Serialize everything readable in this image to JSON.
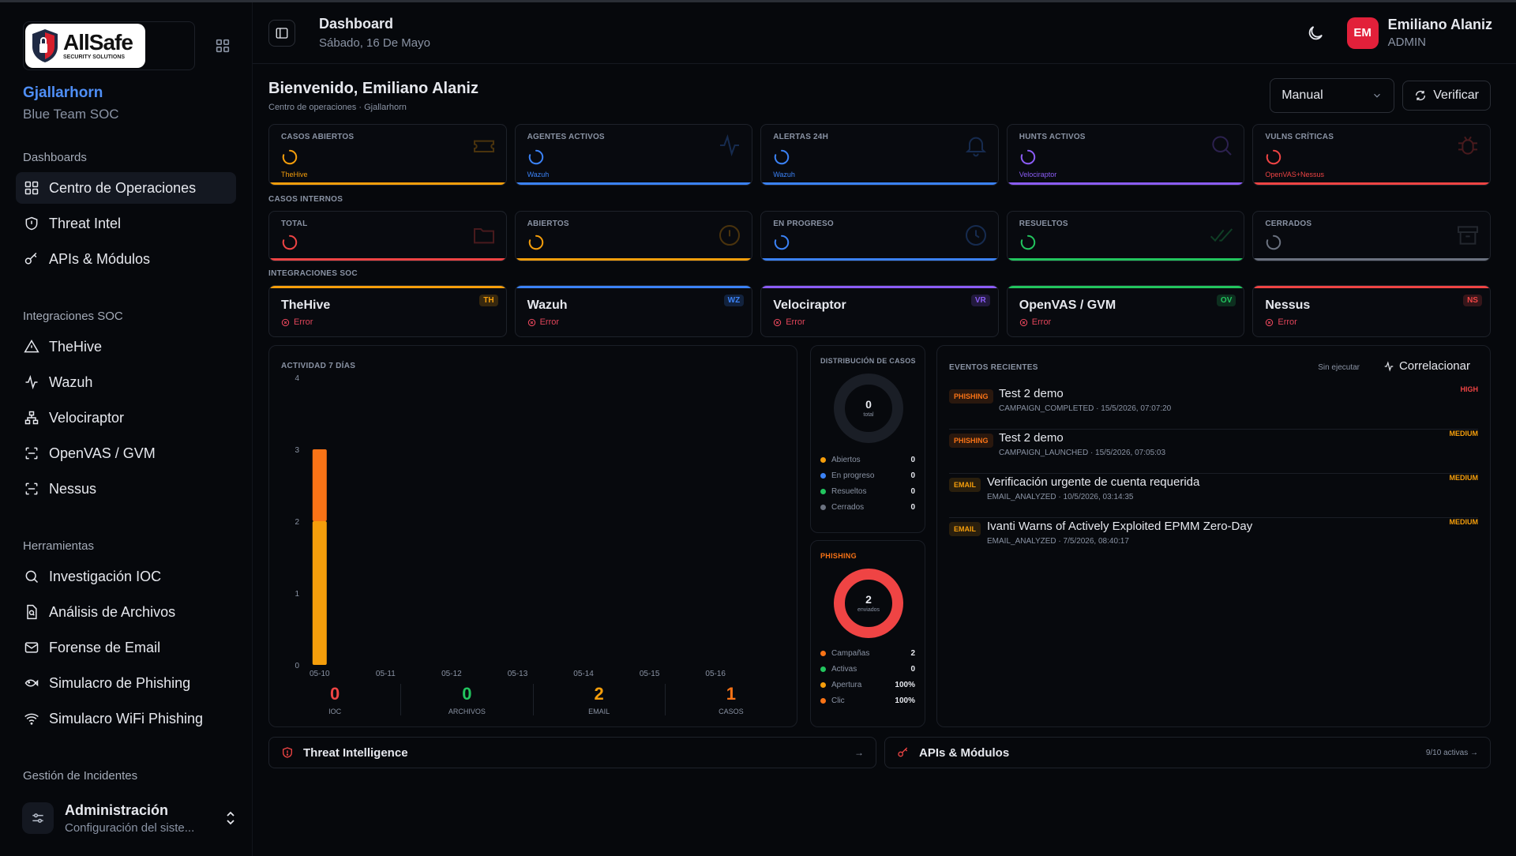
{
  "brand": {
    "logo_main": "AllSafe",
    "logo_sub": "SECURITY SOLUTIONS",
    "org": "Gjallarhorn",
    "team": "Blue Team SOC"
  },
  "sidebar": {
    "sections": [
      {
        "title": "Dashboards",
        "items": [
          {
            "label": "Centro de Operaciones",
            "icon": "layout-icon",
            "active": true
          },
          {
            "label": "Threat Intel",
            "icon": "shield-icon"
          },
          {
            "label": "APIs & Módulos",
            "icon": "key-icon"
          }
        ]
      },
      {
        "title": "Integraciones SOC",
        "items": [
          {
            "label": "TheHive",
            "icon": "triangle-icon"
          },
          {
            "label": "Wazuh",
            "icon": "activity-icon"
          },
          {
            "label": "Velociraptor",
            "icon": "network-icon"
          },
          {
            "label": "OpenVAS / GVM",
            "icon": "scan-icon"
          },
          {
            "label": "Nessus",
            "icon": "scan-icon"
          }
        ]
      },
      {
        "title": "Herramientas",
        "items": [
          {
            "label": "Investigación IOC",
            "icon": "search-icon"
          },
          {
            "label": "Análisis de Archivos",
            "icon": "file-search-icon"
          },
          {
            "label": "Forense de Email",
            "icon": "mail-icon"
          },
          {
            "label": "Simulacro de Phishing",
            "icon": "fish-icon"
          },
          {
            "label": "Simulacro WiFi Phishing",
            "icon": "wifi-icon"
          }
        ]
      },
      {
        "title": "Gestión de Incidentes",
        "items": []
      }
    ],
    "admin": {
      "title": "Administración",
      "subtitle": "Configuración del siste..."
    }
  },
  "topbar": {
    "title": "Dashboard",
    "date": "Sábado, 16 De Mayo",
    "user_initials": "EM",
    "user_name": "Emiliano Alaniz",
    "user_role": "ADMIN"
  },
  "welcome": {
    "title": "Bienvenido, Emiliano Alaniz",
    "subtitle": "Centro de operaciones · Gjallarhorn",
    "mode": "Manual",
    "verify": "Verificar"
  },
  "kpis": [
    {
      "label": "CASOS ABIERTOS",
      "source": "TheHive",
      "color": "#f59e0b"
    },
    {
      "label": "AGENTES ACTIVOS",
      "source": "Wazuh",
      "color": "#3b82f6"
    },
    {
      "label": "ALERTAS 24H",
      "source": "Wazuh",
      "color": "#3b82f6"
    },
    {
      "label": "HUNTS ACTIVOS",
      "source": "Velociraptor",
      "color": "#8b5cf6"
    },
    {
      "label": "VULNS CRÍTICAS",
      "source": "OpenVAS+Nessus",
      "color": "#ef4444"
    }
  ],
  "internal_cases": {
    "title": "CASOS INTERNOS",
    "cards": [
      {
        "label": "TOTAL",
        "color": "#ef4444"
      },
      {
        "label": "ABIERTOS",
        "color": "#f59e0b"
      },
      {
        "label": "EN PROGRESO",
        "color": "#3b82f6"
      },
      {
        "label": "RESUELTOS",
        "color": "#22c55e"
      },
      {
        "label": "CERRADOS",
        "color": "#6b7280"
      }
    ]
  },
  "integrations": {
    "title": "INTEGRACIONES SOC",
    "items": [
      {
        "name": "TheHive",
        "tag": "TH",
        "status": "Error",
        "color": "#f59e0b"
      },
      {
        "name": "Wazuh",
        "tag": "WZ",
        "status": "Error",
        "color": "#3b82f6"
      },
      {
        "name": "Velociraptor",
        "tag": "VR",
        "status": "Error",
        "color": "#8b5cf6"
      },
      {
        "name": "OpenVAS / GVM",
        "tag": "OV",
        "status": "Error",
        "color": "#22c55e"
      },
      {
        "name": "Nessus",
        "tag": "NS",
        "status": "Error",
        "color": "#ef4444"
      }
    ]
  },
  "activity": {
    "title": "ACTIVIDAD 7 DÍAS",
    "stats": [
      {
        "value": "0",
        "label": "IOC",
        "color": "#ef4444"
      },
      {
        "value": "0",
        "label": "ARCHIVOS",
        "color": "#22c55e"
      },
      {
        "value": "2",
        "label": "EMAIL",
        "color": "#f59e0b"
      },
      {
        "value": "1",
        "label": "CASOS",
        "color": "#f97316"
      }
    ]
  },
  "chart_data": {
    "type": "bar",
    "stacked": true,
    "categories": [
      "05-10",
      "05-11",
      "05-12",
      "05-13",
      "05-14",
      "05-15",
      "05-16"
    ],
    "series": [
      {
        "values": [
          2,
          0,
          0,
          0,
          0,
          0,
          0
        ],
        "color": "#f59e0b"
      },
      {
        "values": [
          1,
          0,
          0,
          0,
          0,
          0,
          0
        ],
        "color": "#f97316"
      }
    ],
    "ylim": [
      0,
      4
    ],
    "yticks": [
      "0",
      "1",
      "2",
      "3",
      "4"
    ],
    "grid": false
  },
  "case_distribution": {
    "title": "DISTRIBUCIÓN DE CASOS",
    "total": "0",
    "total_label": "total",
    "legend": [
      {
        "label": "Abiertos",
        "value": "0",
        "color": "#f59e0b"
      },
      {
        "label": "En progreso",
        "value": "0",
        "color": "#3b82f6"
      },
      {
        "label": "Resueltos",
        "value": "0",
        "color": "#22c55e"
      },
      {
        "label": "Cerrados",
        "value": "0",
        "color": "#6b7280"
      }
    ]
  },
  "phishing": {
    "title": "PHISHING",
    "total": "2",
    "total_label": "enviados",
    "legend": [
      {
        "label": "Campañas",
        "value": "2",
        "color": "#f97316"
      },
      {
        "label": "Activas",
        "value": "0",
        "color": "#22c55e"
      },
      {
        "label": "Apertura",
        "value": "100%",
        "color": "#f59e0b"
      },
      {
        "label": "Clic",
        "value": "100%",
        "color": "#f97316"
      }
    ]
  },
  "events": {
    "title": "EVENTOS RECIENTES",
    "status": "Sin ejecutar",
    "action": "Correlacionar",
    "items": [
      {
        "badge": "PHISHING",
        "title": "Test 2 demo",
        "sub": "CAMPAIGN_COMPLETED · 15/5/2026, 07:07:20",
        "severity": "HIGH",
        "sev_color": "#ef4444"
      },
      {
        "badge": "PHISHING",
        "title": "Test 2 demo",
        "sub": "CAMPAIGN_LAUNCHED · 15/5/2026, 07:05:03",
        "severity": "MEDIUM",
        "sev_color": "#f59e0b"
      },
      {
        "badge": "EMAIL",
        "title": "Verificación urgente de cuenta requerida",
        "sub": "EMAIL_ANALYZED · 10/5/2026, 03:14:35",
        "severity": "MEDIUM",
        "sev_color": "#f59e0b"
      },
      {
        "badge": "EMAIL",
        "title": "Ivanti Warns of Actively Exploited EPMM Zero-Day",
        "sub": "EMAIL_ANALYZED · 7/5/2026, 08:40:17",
        "severity": "MEDIUM",
        "sev_color": "#f59e0b"
      }
    ]
  },
  "bottom": {
    "threat": "Threat Intelligence",
    "apis": "APIs & Módulos",
    "apis_status": "9/10 activas →"
  }
}
